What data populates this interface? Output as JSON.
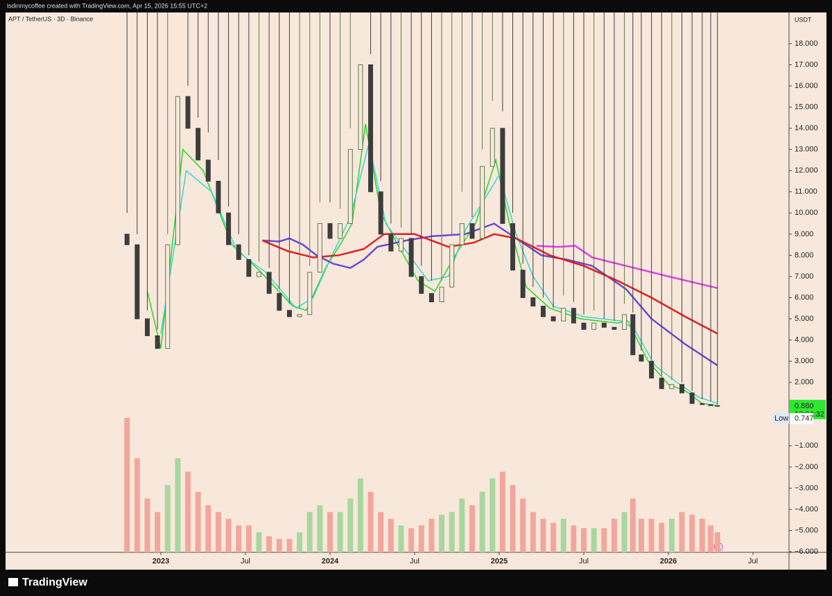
{
  "header": "lsdinmycoffee created with TradingView.com, Apr 15, 2026 15:55 UTC+2",
  "brand": "TradingView",
  "chart_data": {
    "type": "candlestick",
    "title": "APT / TetherUS · 3D · Binance",
    "unit": "USDT",
    "up_color": "#5c7a48",
    "down_color": "#3d3d3d",
    "volume_up_color": "#a9d79e",
    "volume_down_color": "#f1a79c",
    "xlim": [
      2022.082,
      2026.713
    ],
    "xticks": [
      {
        "value": 2023.0,
        "label": "2023"
      },
      {
        "value": 2023.5,
        "label": "Jul"
      },
      {
        "value": 2024.0,
        "label": "2024"
      },
      {
        "value": 2024.5,
        "label": "Jul"
      },
      {
        "value": 2025.0,
        "label": "2025"
      },
      {
        "value": 2025.5,
        "label": "Jul"
      },
      {
        "value": 2026.0,
        "label": "2026"
      },
      {
        "value": 2026.5,
        "label": "Jul"
      }
    ],
    "ylim": [
      -6.03,
      19.47
    ],
    "yticks": [
      {
        "value": 18,
        "label": "18.000"
      },
      {
        "value": 17,
        "label": "17.000"
      },
      {
        "value": 16,
        "label": "16.000"
      },
      {
        "value": 15,
        "label": "15.000"
      },
      {
        "value": 14,
        "label": "14.000"
      },
      {
        "value": 13,
        "label": "13.000"
      },
      {
        "value": 12,
        "label": "12.000"
      },
      {
        "value": 11,
        "label": "11.000"
      },
      {
        "value": 10,
        "label": "10.000"
      },
      {
        "value": 9,
        "label": "9.000"
      },
      {
        "value": 8,
        "label": "8.000"
      },
      {
        "value": 7,
        "label": "7.000"
      },
      {
        "value": 6,
        "label": "6.000"
      },
      {
        "value": 5,
        "label": "5.000"
      },
      {
        "value": 4,
        "label": "4.000"
      },
      {
        "value": 3,
        "label": "3.000"
      },
      {
        "value": 2,
        "label": "2.000"
      },
      {
        "value": -1,
        "label": "−1.000"
      },
      {
        "value": -2,
        "label": "−2.000"
      },
      {
        "value": -3,
        "label": "−3.000"
      },
      {
        "value": -4,
        "label": "−4.000"
      },
      {
        "value": -5,
        "label": "−5.000"
      },
      {
        "value": -6,
        "label": "−6.000"
      }
    ],
    "grid": false,
    "x": [
      2022.8,
      2022.86,
      2022.92,
      2022.98,
      2023.04,
      2023.1,
      2023.16,
      2023.22,
      2023.28,
      2023.34,
      2023.4,
      2023.46,
      2023.52,
      2023.58,
      2023.64,
      2023.7,
      2023.76,
      2023.82,
      2023.88,
      2023.94,
      2024.0,
      2024.06,
      2024.12,
      2024.18,
      2024.24,
      2024.3,
      2024.36,
      2024.42,
      2024.48,
      2024.54,
      2024.6,
      2024.66,
      2024.72,
      2024.78,
      2024.84,
      2024.9,
      2024.96,
      2025.02,
      2025.08,
      2025.14,
      2025.2,
      2025.26,
      2025.32,
      2025.38,
      2025.44,
      2025.5,
      2025.56,
      2025.62,
      2025.68,
      2025.74,
      2025.79,
      2025.84,
      2025.9,
      2025.96,
      2026.02,
      2026.08,
      2026.14,
      2026.2,
      2026.25,
      2026.29
    ],
    "open": [
      9,
      8.5,
      5,
      4.2,
      3.6,
      8.5,
      15.5,
      14,
      12.5,
      11.5,
      10,
      8.5,
      7.8,
      7,
      7.2,
      6.2,
      5.4,
      5.1,
      5.2,
      7.2,
      9.5,
      8.8,
      9.5,
      13,
      17,
      11,
      9,
      8.2,
      8.8,
      7,
      6.2,
      5.8,
      6.5,
      8.5,
      9.5,
      8.8,
      12.2,
      14,
      9.5,
      7.3,
      6,
      5.6,
      5.1,
      4.9,
      5.5,
      4.8,
      4.5,
      4.8,
      4.6,
      4.5,
      5.2,
      3.3,
      3,
      2.2,
      1.7,
      1.9,
      1.5,
      1,
      0.95,
      0.9
    ],
    "high": [
      10,
      9,
      5.4,
      4.5,
      9,
      19.5,
      16,
      14.5,
      13.8,
      12.5,
      10.3,
      9,
      8,
      7.7,
      7.4,
      6.4,
      5.7,
      5.5,
      7.5,
      10.5,
      10.5,
      10.2,
      14,
      19.9,
      17.5,
      11.5,
      9.5,
      9.3,
      9,
      7.5,
      6.8,
      6.8,
      9,
      11,
      9.8,
      13,
      15.3,
      14.8,
      10,
      7.6,
      6.5,
      6,
      5.5,
      6.1,
      5.8,
      5.2,
      5.4,
      5,
      4.9,
      5.7,
      5.3,
      3.5,
      3.1,
      2.3,
      2.1,
      2,
      1.6,
      1.2,
      1.1,
      0.95
    ],
    "low": {
      "value": 0.747,
      "label": "0.747"
    },
    "close": [
      8.5,
      5,
      4.2,
      3.6,
      8.5,
      15.5,
      14,
      12.5,
      11.5,
      10,
      8.5,
      7.8,
      7,
      7.2,
      6.2,
      5.4,
      5.1,
      5.2,
      7.2,
      9.5,
      8.8,
      9.5,
      13,
      17,
      11,
      9,
      8.2,
      8.8,
      7,
      6.2,
      5.8,
      6.5,
      8.5,
      9.5,
      8.8,
      12.2,
      14,
      9.5,
      7.3,
      6,
      5.6,
      5.1,
      4.9,
      5.5,
      4.8,
      4.5,
      4.8,
      4.6,
      4.5,
      5.2,
      3.3,
      3,
      2.2,
      1.7,
      1.9,
      1.5,
      1,
      0.95,
      0.9,
      0.88
    ],
    "volume": [
      100,
      70,
      40,
      30,
      50,
      70,
      60,
      45,
      35,
      30,
      25,
      20,
      20,
      15,
      12,
      10,
      10,
      15,
      30,
      35,
      30,
      30,
      40,
      55,
      45,
      30,
      25,
      20,
      18,
      20,
      25,
      28,
      30,
      40,
      35,
      45,
      55,
      60,
      50,
      40,
      30,
      25,
      22,
      25,
      20,
      18,
      18,
      18,
      25,
      30,
      40,
      25,
      25,
      22,
      25,
      30,
      28,
      25,
      20,
      15
    ],
    "lines": [
      {
        "color": "#22d822",
        "x": [
          2022.92,
          2023.0,
          2023.13,
          2023.25,
          2023.42,
          2023.58,
          2023.78,
          2023.86,
          2023.98,
          2024.06,
          2024.13,
          2024.21,
          2024.3,
          2024.4,
          2024.52,
          2024.62,
          2024.74,
          2024.86,
          2024.98,
          2025.06,
          2025.16,
          2025.3,
          2025.48,
          2025.7,
          2025.76,
          2025.88,
          2026.0,
          2026.1,
          2026.2,
          2026.29
        ],
        "values": [
          6.3,
          3.6,
          13,
          12,
          8.5,
          7.3,
          5.6,
          5.4,
          7.5,
          8.5,
          9.5,
          14.2,
          10,
          8.5,
          6.8,
          6.3,
          8,
          9.5,
          12.5,
          9.5,
          6.5,
          5.5,
          5,
          4.8,
          4.9,
          3,
          1.9,
          1.6,
          1,
          0.9
        ]
      },
      {
        "color": "#36d6d0",
        "x": [
          2023.0,
          2023.15,
          2023.3,
          2023.45,
          2023.62,
          2023.8,
          2023.9,
          2024.0,
          2024.12,
          2024.23,
          2024.33,
          2024.45,
          2024.58,
          2024.7,
          2024.8,
          2024.94,
          2025.0,
          2025.1,
          2025.2,
          2025.32,
          2025.5,
          2025.72,
          2025.8,
          2025.92,
          2026.05,
          2026.18,
          2026.29
        ],
        "values": [
          4.3,
          12,
          11,
          8.2,
          7.2,
          5.5,
          6,
          7.8,
          9.8,
          13.3,
          9.5,
          8.2,
          6.8,
          7,
          9.2,
          11,
          11.8,
          9,
          7,
          5.6,
          5.1,
          4.9,
          4.5,
          2.8,
          2,
          1.3,
          1
        ]
      },
      {
        "color": "#6a4bcf",
        "x": [
          2023.6,
          2023.7,
          2023.76,
          2023.84,
          2023.92,
          2024.02,
          2024.12,
          2024.2,
          2024.28,
          2024.45,
          2024.6,
          2024.8,
          2024.97,
          2025.1,
          2025.25,
          2025.4,
          2025.55,
          2025.75,
          2025.9,
          2026.1,
          2026.29
        ],
        "values": [
          8.7,
          8.65,
          8.8,
          8.5,
          8,
          7.6,
          7.4,
          7.8,
          8.4,
          8.7,
          8.9,
          9,
          9.5,
          8.8,
          8,
          7.8,
          7.5,
          6.4,
          5,
          3.8,
          2.8
        ]
      },
      {
        "color": "#e02020",
        "x": [
          2023.6,
          2023.75,
          2023.9,
          2024.05,
          2024.2,
          2024.32,
          2024.5,
          2024.7,
          2024.85,
          2024.97,
          2025.1,
          2025.3,
          2025.5,
          2025.7,
          2025.9,
          2026.1,
          2026.29
        ],
        "values": [
          8.7,
          8.2,
          7.9,
          8,
          8.3,
          9,
          9,
          8.4,
          8.6,
          9,
          8.8,
          8,
          7.5,
          6.8,
          6,
          5.1,
          4.3
        ]
      },
      {
        "color": "#e040e0",
        "x": [
          2025.22,
          2025.35,
          2025.45,
          2025.55,
          2025.8,
          2026.0,
          2026.29
        ],
        "values": [
          8.45,
          8.4,
          8.45,
          7.9,
          7.4,
          7,
          6.45
        ]
      }
    ],
    "last_price": {
      "value": 0.88,
      "label": "0.880"
    },
    "countdown": "10:04:32",
    "last_color": "#2ee82e",
    "low_text": "Low"
  }
}
